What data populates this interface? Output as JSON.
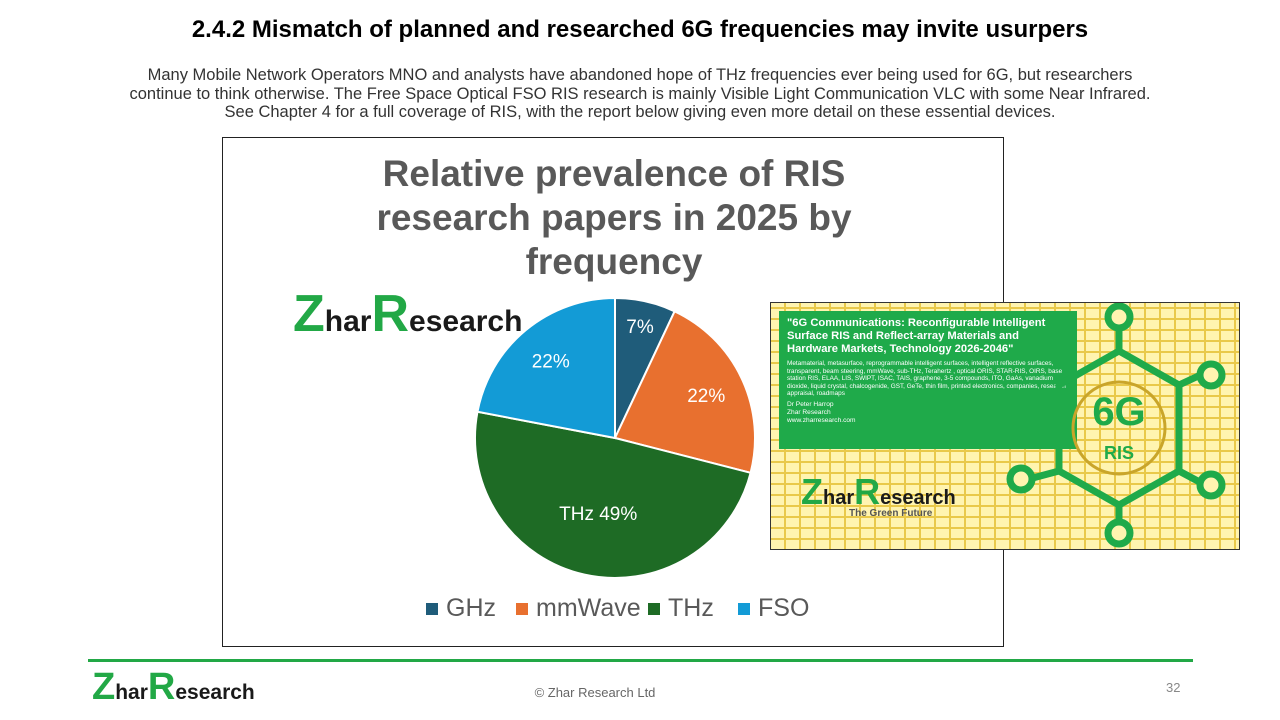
{
  "slide": {
    "title": "2.4.2 Mismatch of planned and researched 6G frequencies may invite usurpers",
    "intro_lines": [
      "Many Mobile Network Operators MNO and analysts have abandoned hope of THz frequencies ever being used for 6G, but researchers",
      "continue to think otherwise. The Free Space Optical FSO RIS research is mainly Visible Light Communication VLC with some Near Infrared.",
      "See Chapter 4 for a full coverage of RIS, with the report below giving even more detail on these essential devices."
    ]
  },
  "chart_data": {
    "type": "pie",
    "title_lines": [
      "Relative prevalence of RIS",
      "research papers in 2025 by",
      "frequency"
    ],
    "categories": [
      "GHz",
      "mmWave",
      "THz",
      "FSO"
    ],
    "values": [
      7,
      22,
      49,
      22
    ],
    "data_labels": [
      "7%",
      "22%",
      "THz  49%",
      "22%"
    ],
    "colors": [
      "#1f5c7a",
      "#e8702f",
      "#1e6b25",
      "#139bd6"
    ],
    "legend_position": "bottom"
  },
  "logo": {
    "z": "Z",
    "har": "har",
    "r": "R",
    "esearch": "esearch"
  },
  "cover": {
    "title": "\"6G Communications: Reconfigurable Intelligent Surface RIS and Reflect-array Materials and Hardware Markets, Technology 2026-2046\"",
    "description": "Metamaterial, metasurface, reprogrammable intelligent surfaces, intelligent reflective surfaces, transparent, beam steering, mmWave, sub-THz, Terahertz , optical ORIS, STAR-RIS, OIRS, base station RIS, ELAA, LIS, SWIPT, ISAC, TAIS, graphene, 3-5 compounds, ITO, GaAs, vanadium dioxide, liquid crystal, chalcogenide, GST, GeTe, thin film, printed electronics, companies, research appraisal, roadmaps",
    "author": "Dr Peter Harrop",
    "company": "Zhar Research",
    "website": "www.zharresearch.com",
    "badge_main": "6G",
    "badge_sub": "RIS",
    "tagline": "The Green Future"
  },
  "footer": {
    "copyright": "© Zhar Research Ltd",
    "page_number": "32"
  },
  "colors": {
    "accent_green": "#22a846",
    "cover_green": "#1faa4a"
  }
}
